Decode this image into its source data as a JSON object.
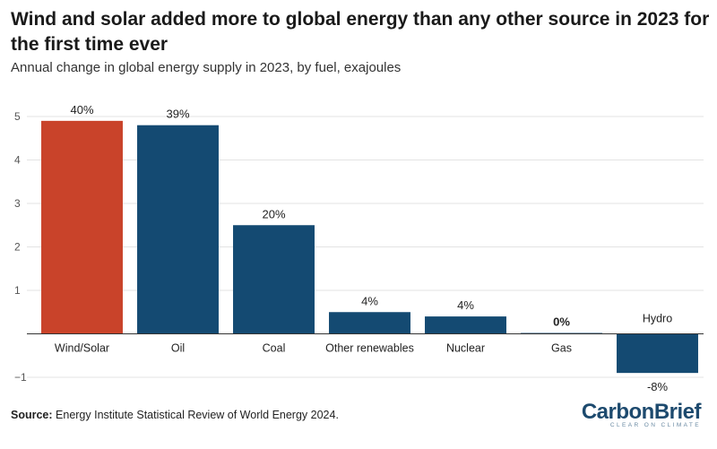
{
  "title": "Wind and solar added more to global energy than any other source in 2023 for the first time ever",
  "subtitle": "Annual change in global energy supply in 2023, by fuel, exajoules",
  "source_label": "Source:",
  "source_text": "Energy Institute Statistical Review of World Energy 2024.",
  "logo": {
    "word": "CarbonBrief",
    "tagline": "CLEAR ON CLIMATE"
  },
  "colors": {
    "highlight": "#c9432a",
    "bar": "#144a72",
    "grid": "#e3e3e3",
    "axis": "#555555"
  },
  "chart_data": {
    "type": "bar",
    "categories": [
      "Wind/Solar",
      "Oil",
      "Coal",
      "Other renewables",
      "Nuclear",
      "Gas",
      "Hydro"
    ],
    "values": [
      4.9,
      4.8,
      2.5,
      0.5,
      0.4,
      0.02,
      -0.9
    ],
    "data_labels": [
      "40%",
      "39%",
      "20%",
      "4%",
      "4%",
      "0%",
      "-8%"
    ],
    "highlight_index": 0,
    "ylim": [
      -1,
      5
    ],
    "yticks": [
      -1,
      1,
      2,
      3,
      4,
      5
    ],
    "ytick_labels": [
      "−1",
      "1",
      "2",
      "3",
      "4",
      "5"
    ],
    "grid": true,
    "xlabel": "",
    "ylabel": ""
  }
}
